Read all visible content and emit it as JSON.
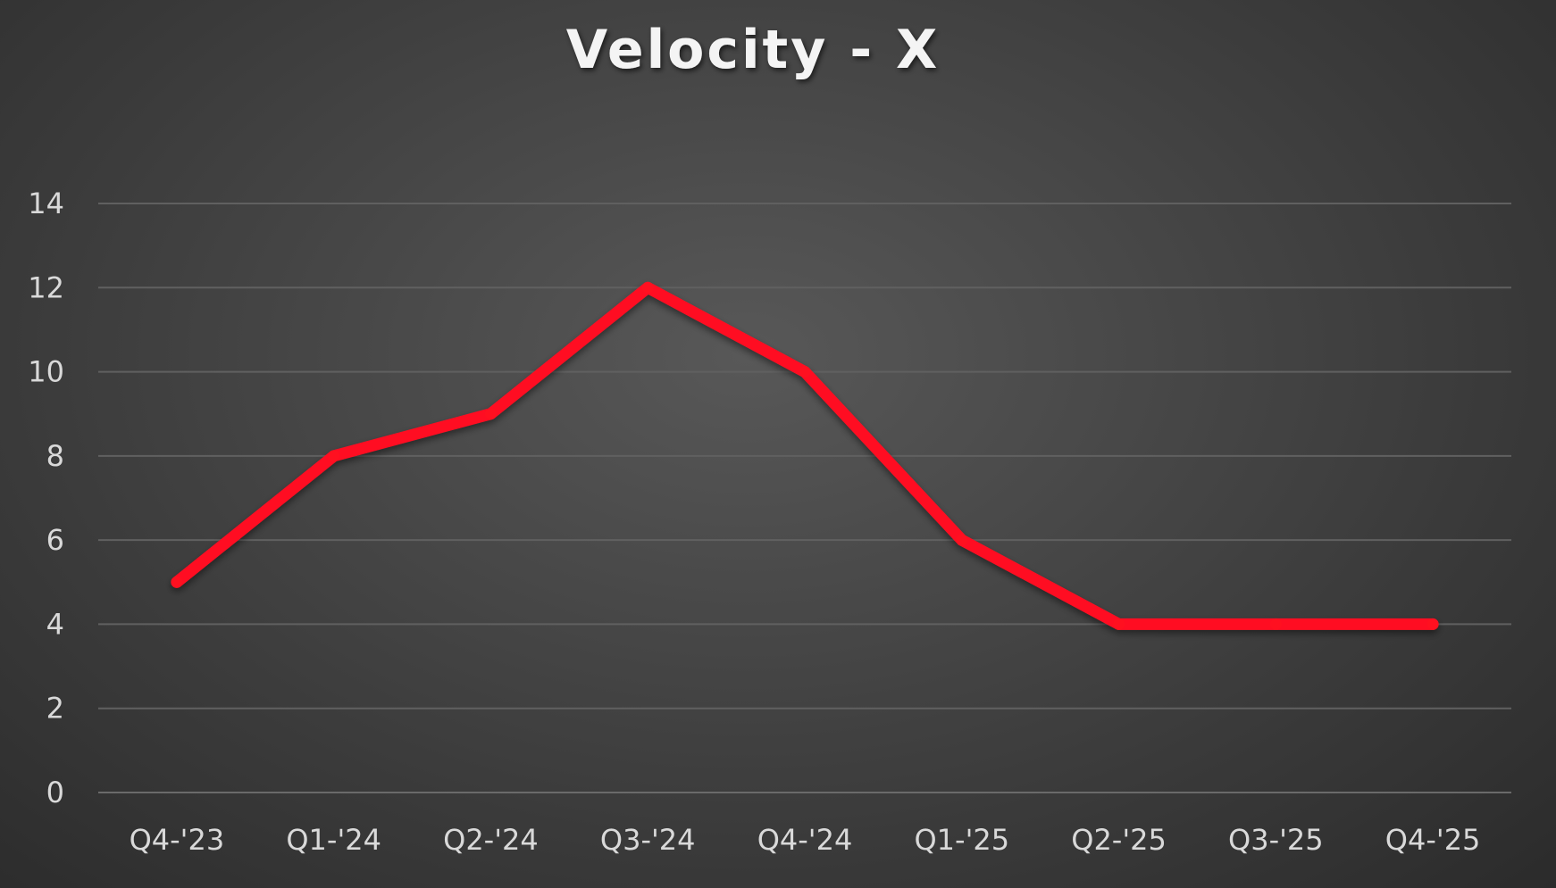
{
  "chart_data": {
    "type": "line",
    "title": "Velocity - X",
    "xlabel": "",
    "ylabel": "",
    "categories": [
      "Q4-'23",
      "Q1-'24",
      "Q2-'24",
      "Q3-'24",
      "Q4-'24",
      "Q1-'25",
      "Q2-'25",
      "Q3-'25",
      "Q4-'25"
    ],
    "series": [
      {
        "values": [
          5,
          8,
          9,
          12,
          10,
          6,
          4,
          4,
          4
        ],
        "color": "#ff1020"
      }
    ],
    "ylim": [
      0,
      14
    ],
    "yticks": [
      0,
      2,
      4,
      6,
      8,
      10,
      12,
      14
    ],
    "grid": true,
    "legend": "none",
    "colors": {
      "background": "#454545",
      "gridline": "#606060",
      "text": "#d9d9d9",
      "title": "#f4f4f4"
    }
  }
}
